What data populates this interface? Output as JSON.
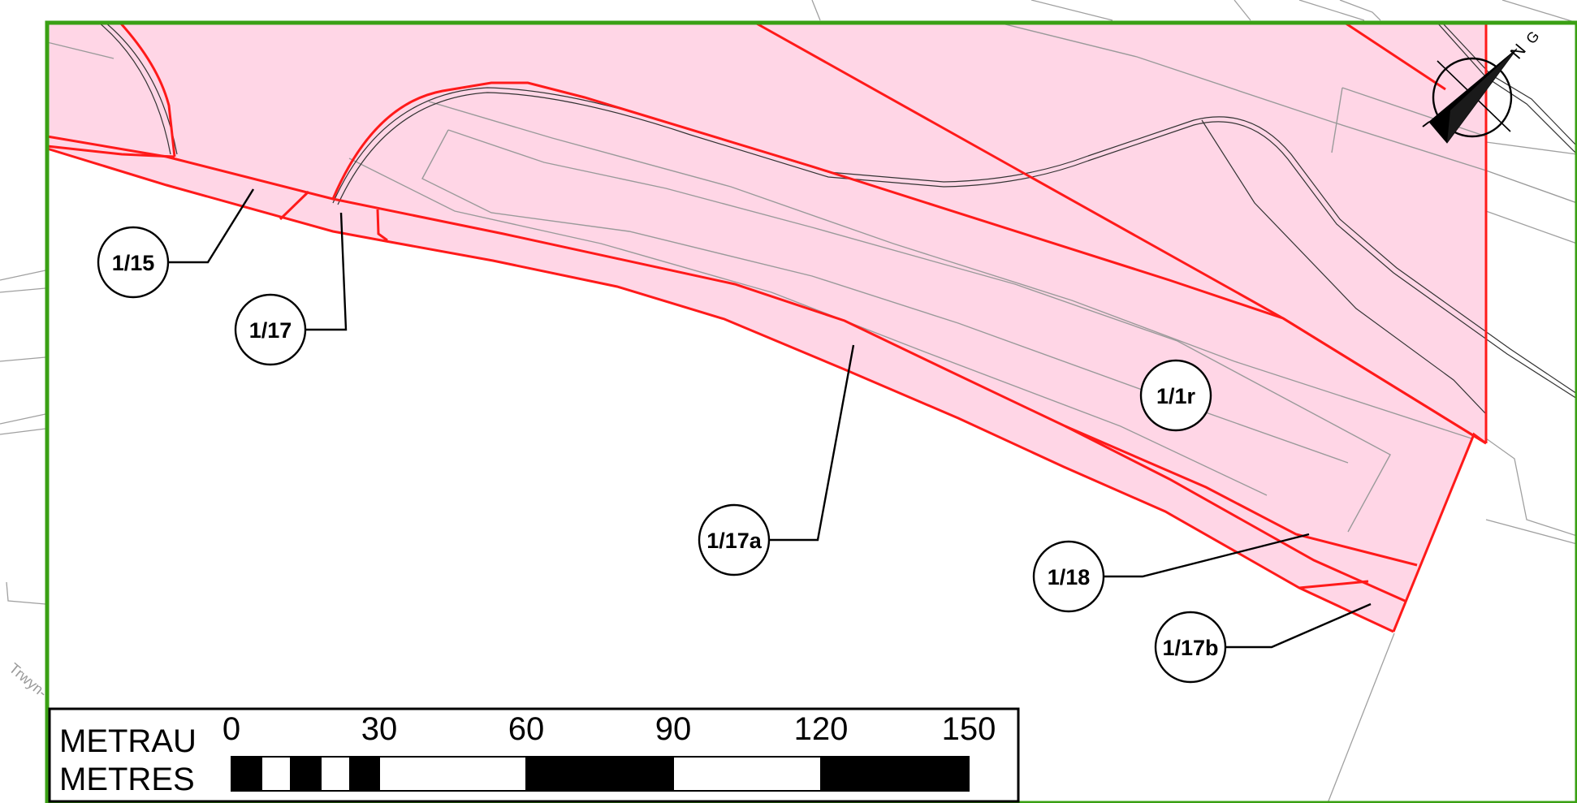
{
  "map": {
    "parcels": [
      {
        "id": "1/15"
      },
      {
        "id": "1/17"
      },
      {
        "id": "1/17a"
      },
      {
        "id": "1/1r"
      },
      {
        "id": "1/18"
      },
      {
        "id": "1/17b"
      }
    ],
    "north_arrow": {
      "symbol": "N",
      "sub_symbol": "G"
    },
    "road_label": "Trwyn-"
  },
  "scale_bar": {
    "label_cy": "METRAU",
    "label_en": "METRES",
    "ticks": [
      "0",
      "30",
      "60",
      "90",
      "120",
      "150"
    ]
  },
  "colors": {
    "parcel_fill": "#ffd6e6",
    "parcel_line": "#ff1a1a",
    "frame": "#3aa014",
    "base_lines": "#9a9a9a"
  }
}
